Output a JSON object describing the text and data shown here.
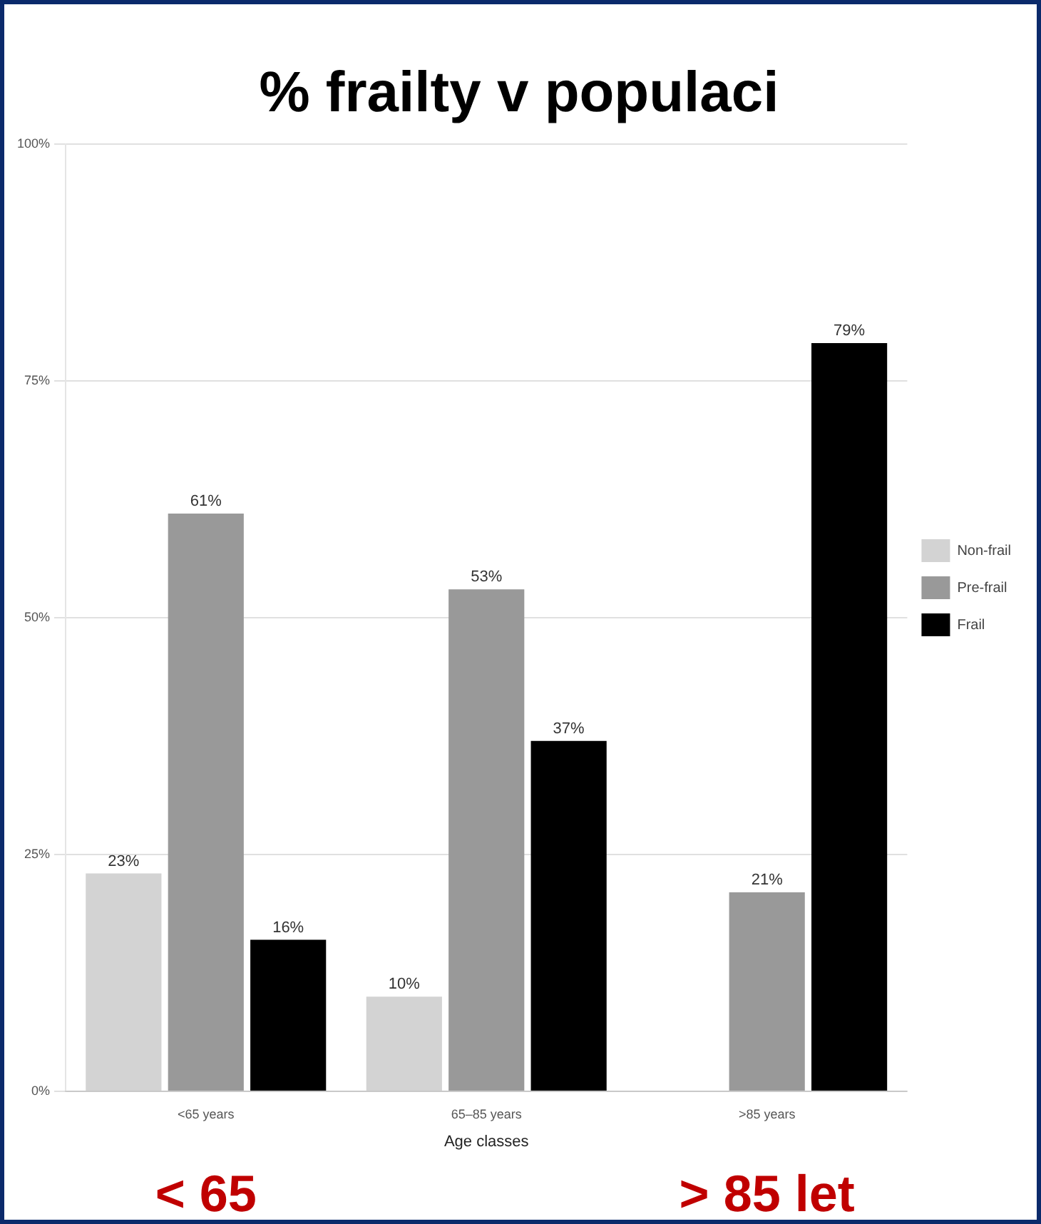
{
  "chart_data": {
    "type": "bar",
    "title": "% frailty v populaci",
    "xlabel": "Age classes",
    "categories": [
      "<65 years",
      "65–85 years",
      ">85 years"
    ],
    "series": [
      {
        "name": "Non-frail",
        "color": "#d3d3d3",
        "values": [
          23,
          10,
          null
        ],
        "value_labels": [
          "23%",
          "10%",
          null
        ]
      },
      {
        "name": "Pre-frail",
        "color": "#999999",
        "values": [
          61,
          53,
          21
        ],
        "value_labels": [
          "61%",
          "53%",
          "21%"
        ]
      },
      {
        "name": "Frail",
        "color": "#000000",
        "values": [
          16,
          37,
          79
        ],
        "value_labels": [
          "16%",
          "37%",
          "79%"
        ]
      }
    ],
    "ylim": [
      0,
      100
    ],
    "yticks": [
      {
        "value": 0,
        "label": "0%"
      },
      {
        "value": 25,
        "label": "25%"
      },
      {
        "value": 50,
        "label": "50%"
      },
      {
        "value": 75,
        "label": "75%"
      },
      {
        "value": 100,
        "label": "100%"
      }
    ],
    "grid": "y",
    "legend": "right",
    "annotations": [
      "< 65",
      "> 85 let"
    ]
  }
}
